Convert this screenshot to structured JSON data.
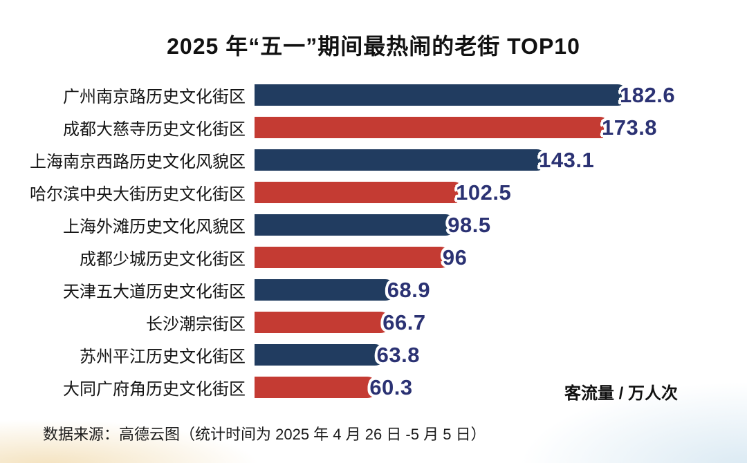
{
  "page": {
    "title": "2025 年“五一”期间最热闹的老街 TOP10",
    "unit_label": "客流量 / 万人次",
    "source_note": "数据来源：高德云图（统计时间为 2025 年 4 月 26 日 -5 月 5 日）"
  },
  "colors": {
    "navy_bar": "#213C60",
    "red_bar": "#C43B33",
    "value_text": "#2B3273"
  },
  "chart_data": {
    "type": "bar",
    "orientation": "horizontal",
    "title": "2025 年“五一”期间最热闹的老街 TOP10",
    "xlabel": "客流量 / 万人次",
    "ylabel": "",
    "unit": "万人次",
    "xlim": [
      0,
      190
    ],
    "grid": false,
    "legend": false,
    "categories": [
      "广州南京路历史文化街区",
      "成都大慈寺历史文化街区",
      "上海南京西路历史文化风貌区",
      "哈尔滨中央大街历史文化街区",
      "上海外滩历史文化风貌区",
      "成都少城历史文化街区",
      "天津五大道历史文化街区",
      "长沙潮宗街区",
      "苏州平江历史文化街区",
      "大同广府角历史文化街区"
    ],
    "values": [
      182.6,
      173.8,
      143.1,
      102.5,
      98.5,
      96,
      68.9,
      66.7,
      63.8,
      60.3
    ],
    "bar_colors": [
      "#213C60",
      "#C43B33",
      "#213C60",
      "#C43B33",
      "#213C60",
      "#C43B33",
      "#213C60",
      "#C43B33",
      "#213C60",
      "#C43B33"
    ]
  }
}
